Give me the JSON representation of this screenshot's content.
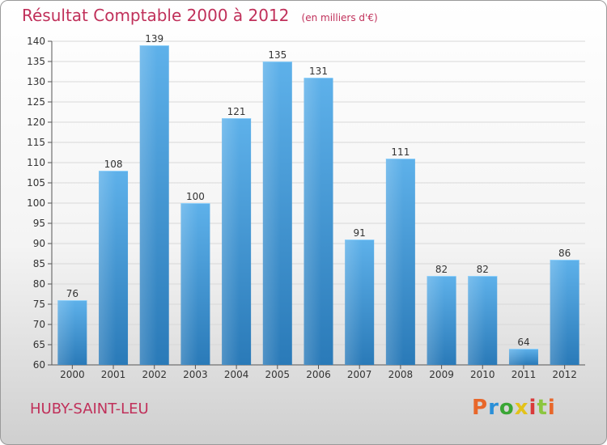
{
  "header": {
    "title": "Résultat Comptable 2000 à 2012",
    "subtitle": "(en milliers d'€)"
  },
  "footer": {
    "city": "HUBY-SAINT-LEU",
    "logo": {
      "text": "Proxiti",
      "letter_colors": [
        "#e8672a",
        "#2a8fd8",
        "#3aa635",
        "#e3c21a",
        "#d93a3a",
        "#8cc63f",
        "#e8672a"
      ]
    }
  },
  "colors": {
    "bar_light": "#5eb1ea",
    "bar_dark": "#2a7ab8",
    "title": "#c0305a",
    "text": "#333333"
  },
  "chart_data": {
    "type": "bar",
    "categories": [
      "2000",
      "2001",
      "2002",
      "2003",
      "2004",
      "2005",
      "2006",
      "2007",
      "2008",
      "2009",
      "2010",
      "2011",
      "2012"
    ],
    "values": [
      76,
      108,
      139,
      100,
      121,
      135,
      131,
      91,
      111,
      82,
      82,
      64,
      86
    ],
    "ylim": [
      60,
      140
    ],
    "ytick_step": 5,
    "grid": true
  }
}
